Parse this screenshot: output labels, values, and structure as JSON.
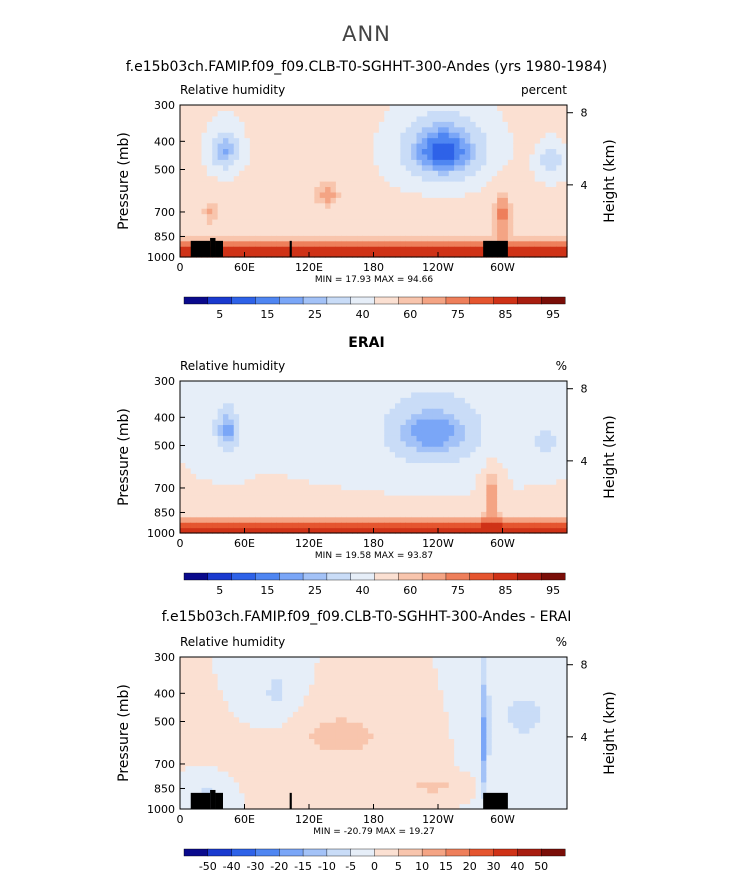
{
  "figure": {
    "title": "ANN"
  },
  "colors": {
    "land": "#000000",
    "abs_palette": [
      "#0a0a8c",
      "#1a3acf",
      "#2e62e8",
      "#4f86f2",
      "#7aa6f7",
      "#a3c2f7",
      "#c9dcf7",
      "#e6eef8",
      "#fbe0d2",
      "#f8c5ad",
      "#f4a484",
      "#ee7f5b",
      "#e5552f",
      "#cf3217",
      "#a81d10",
      "#7a0e08"
    ],
    "diff_palette": [
      "#0a0a8c",
      "#1a3acf",
      "#2e62e8",
      "#4f86f2",
      "#7aa6f7",
      "#a3c2f7",
      "#c9dcf7",
      "#e6eef8",
      "#fbe0d2",
      "#f8c5ad",
      "#f4a484",
      "#ee7f5b",
      "#e5552f",
      "#cf3217",
      "#a81d10",
      "#7a0e08"
    ]
  },
  "chart_data": [
    {
      "type": "heatmap",
      "title": "f.e15b03ch.FAMIP.f09_f09.CLB-T0-SGHHT-300-Andes (yrs 1980-1984)",
      "left_label": "Relative humidity",
      "right_label": "percent",
      "ylabel": "Pressure (mb)",
      "ylabel_right": "Height (km)",
      "yticks": [
        "300",
        "400",
        "500",
        "700",
        "850",
        "1000"
      ],
      "ytick_values": [
        300,
        400,
        500,
        700,
        850,
        1000
      ],
      "xticks": [
        "0",
        "60E",
        "120E",
        "180",
        "120W",
        "60W"
      ],
      "xtick_values": [
        0,
        60,
        120,
        180,
        240,
        300
      ],
      "xlim": [
        0,
        360
      ],
      "right_ticks": [
        "8",
        "4"
      ],
      "right_tick_values": [
        8,
        4
      ],
      "minmax": "MIN =   17.93   MAX =   94.66",
      "min": 17.93,
      "max": 94.66,
      "colorbar_labels": [
        "5",
        "15",
        "25",
        "40",
        "60",
        "75",
        "85",
        "95"
      ],
      "levels": [
        5,
        10,
        15,
        20,
        25,
        30,
        40,
        50,
        60,
        65,
        70,
        75,
        80,
        85,
        90,
        95
      ]
    },
    {
      "type": "heatmap",
      "title": "ERAI",
      "left_label": "Relative humidity",
      "right_label": "%",
      "ylabel": "Pressure (mb)",
      "ylabel_right": "Height (km)",
      "yticks": [
        "300",
        "400",
        "500",
        "700",
        "850",
        "1000"
      ],
      "ytick_values": [
        300,
        400,
        500,
        700,
        850,
        1000
      ],
      "xticks": [
        "0",
        "60E",
        "120E",
        "180",
        "120W",
        "60W"
      ],
      "xtick_values": [
        0,
        60,
        120,
        180,
        240,
        300
      ],
      "xlim": [
        0,
        360
      ],
      "right_ticks": [
        "8",
        "4"
      ],
      "right_tick_values": [
        8,
        4
      ],
      "minmax": "MIN =   19.58   MAX =   93.87",
      "min": 19.58,
      "max": 93.87,
      "colorbar_labels": [
        "5",
        "15",
        "25",
        "40",
        "60",
        "75",
        "85",
        "95"
      ],
      "levels": [
        5,
        10,
        15,
        20,
        25,
        30,
        40,
        50,
        60,
        65,
        70,
        75,
        80,
        85,
        90,
        95
      ]
    },
    {
      "type": "heatmap",
      "title": "f.e15b03ch.FAMIP.f09_f09.CLB-T0-SGHHT-300-Andes - ERAI",
      "left_label": "Relative humidity",
      "right_label": "%",
      "ylabel": "Pressure (mb)",
      "ylabel_right": "Height (km)",
      "yticks": [
        "300",
        "400",
        "500",
        "700",
        "850",
        "1000"
      ],
      "ytick_values": [
        300,
        400,
        500,
        700,
        850,
        1000
      ],
      "xticks": [
        "0",
        "60E",
        "120E",
        "180",
        "120W",
        "60W"
      ],
      "xtick_values": [
        0,
        60,
        120,
        180,
        240,
        300
      ],
      "xlim": [
        0,
        360
      ],
      "right_ticks": [
        "8",
        "4"
      ],
      "right_tick_values": [
        8,
        4
      ],
      "minmax": "MIN =  -20.79   MAX =   19.27",
      "min": -20.79,
      "max": 19.27,
      "colorbar_labels": [
        "-50",
        "-40",
        "-30",
        "-20",
        "-15",
        "-10",
        "-5",
        "0",
        "5",
        "10",
        "15",
        "20",
        "30",
        "40",
        "50"
      ],
      "levels": [
        -50,
        -40,
        -30,
        -20,
        -15,
        -10,
        -5,
        0,
        5,
        10,
        15,
        20,
        30,
        40,
        50
      ]
    }
  ]
}
